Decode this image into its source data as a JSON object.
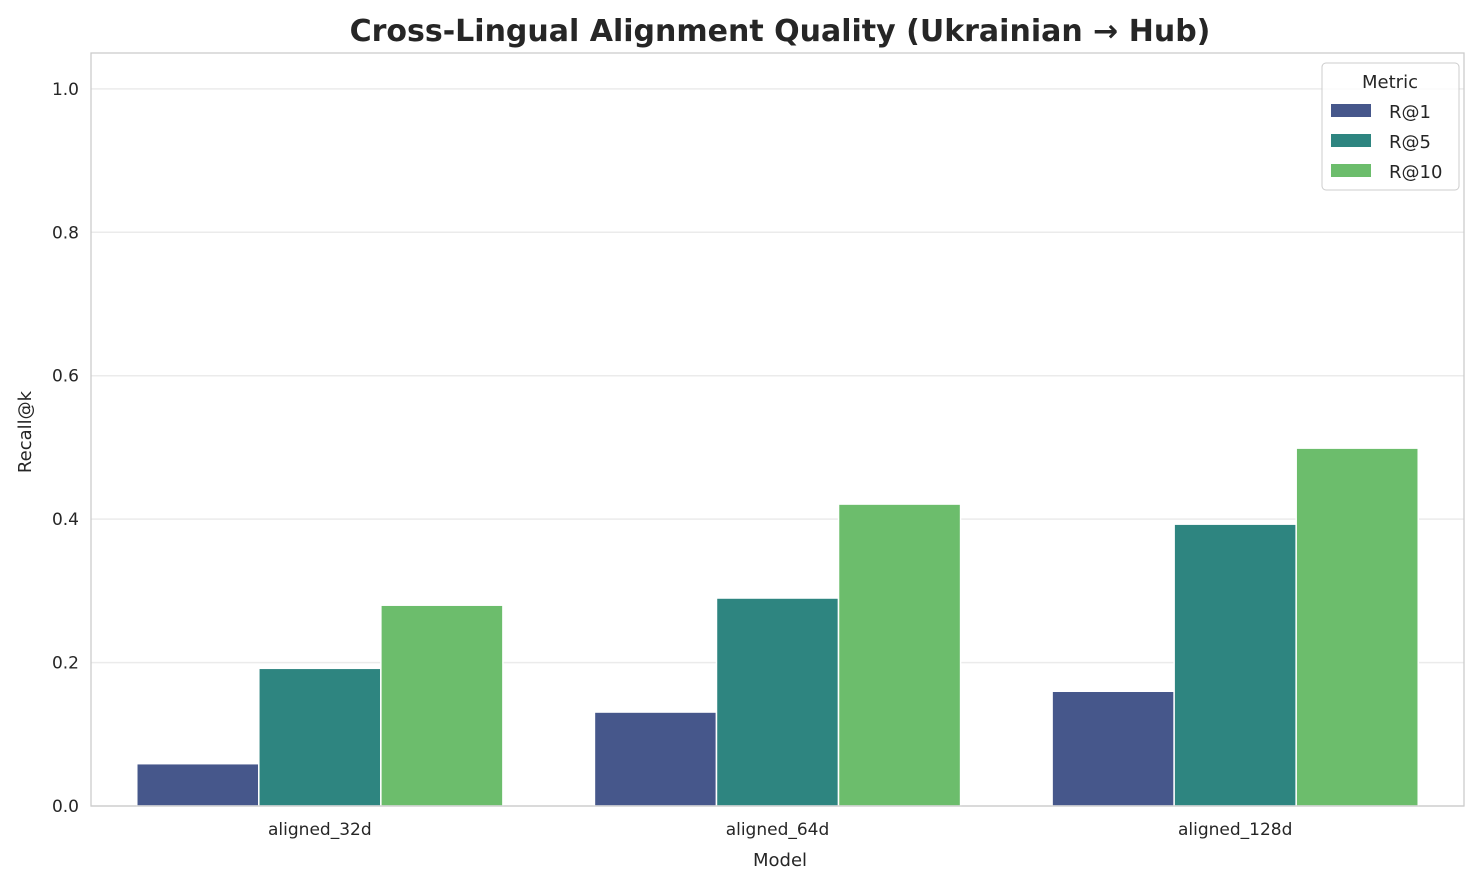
{
  "chart_data": {
    "type": "bar",
    "title": "Cross-Lingual Alignment Quality (Ukrainian → Hub)",
    "xlabel": "Model",
    "ylabel": "Recall@k",
    "ylim": [
      0,
      1.05
    ],
    "yticks": [
      0.0,
      0.2,
      0.4,
      0.6,
      0.8,
      1.0
    ],
    "ytick_labels": [
      "0.0",
      "0.2",
      "0.4",
      "0.6",
      "0.8",
      "1.0"
    ],
    "grid": true,
    "categories": [
      "aligned_32d",
      "aligned_64d",
      "aligned_128d"
    ],
    "legend": {
      "title": "Metric",
      "placement": "top-right"
    },
    "series": [
      {
        "name": "R@1",
        "color": "#46578b",
        "values": [
          0.059,
          0.131,
          0.16
        ]
      },
      {
        "name": "R@5",
        "color": "#2e8580",
        "values": [
          0.192,
          0.29,
          0.393
        ]
      },
      {
        "name": "R@10",
        "color": "#6cbd6c",
        "values": [
          0.28,
          0.421,
          0.499
        ]
      }
    ]
  }
}
